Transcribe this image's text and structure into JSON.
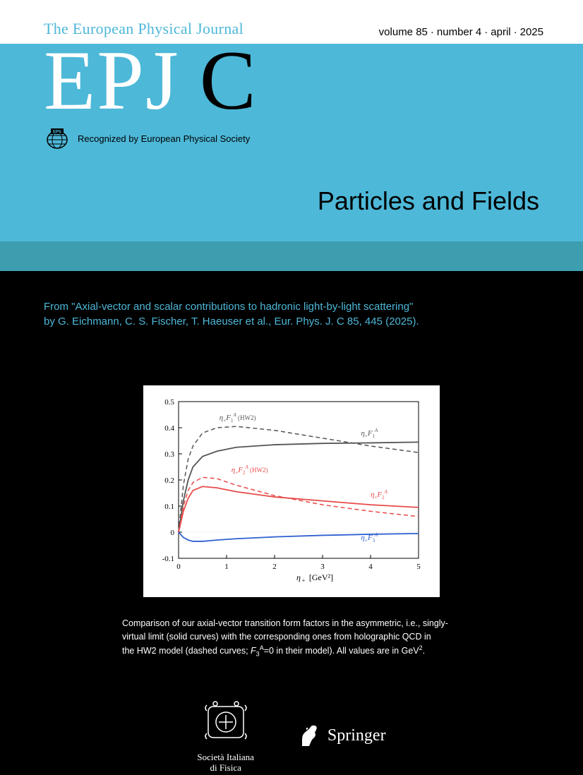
{
  "header": {
    "journal_name": "The European Physical Journal",
    "volume": "volume 85",
    "number": "number 4",
    "month": "april",
    "year": "2025"
  },
  "masthead": {
    "logo_main": "EPJ",
    "logo_letter": "C",
    "eps_text": "Recognized by European Physical Society",
    "subtitle": "Particles and Fields"
  },
  "citation": {
    "line1": "From \"Axial-vector and scalar contributions to hadronic light-by-light scattering\"",
    "line2": "by G. Eichmann, C. S. Fischer, T. Haeuser et al., Eur. Phys. J. C 85, 445 (2025)."
  },
  "chart": {
    "type": "line",
    "background_color": "#ffffff",
    "plot_border_color": "#000000",
    "xlim": [
      0,
      5
    ],
    "ylim": [
      -0.1,
      0.5
    ],
    "xticks": [
      0,
      1,
      2,
      3,
      4,
      5
    ],
    "yticks": [
      -0.1,
      0,
      0.1,
      0.2,
      0.3,
      0.4,
      0.5
    ],
    "xlabel": "η₊ [GeV²]",
    "axis_fontsize": 12,
    "tick_fontsize": 11,
    "series": [
      {
        "name": "F1_solid",
        "label": "η₊F₁ᴬ",
        "label_pos": [
          3.8,
          0.37
        ],
        "color": "#555555",
        "style": "solid",
        "width": 1.8,
        "data": [
          [
            0,
            0
          ],
          [
            0.1,
            0.12
          ],
          [
            0.2,
            0.2
          ],
          [
            0.3,
            0.25
          ],
          [
            0.5,
            0.29
          ],
          [
            0.8,
            0.31
          ],
          [
            1.2,
            0.325
          ],
          [
            2,
            0.335
          ],
          [
            3,
            0.34
          ],
          [
            4,
            0.342
          ],
          [
            5,
            0.345
          ]
        ]
      },
      {
        "name": "F1_dashed",
        "label": "η₊F₁ᴬ (HW2)",
        "label_pos": [
          0.85,
          0.43
        ],
        "color": "#555555",
        "style": "dashed",
        "width": 1.5,
        "data": [
          [
            0,
            0
          ],
          [
            0.1,
            0.18
          ],
          [
            0.2,
            0.28
          ],
          [
            0.3,
            0.33
          ],
          [
            0.5,
            0.38
          ],
          [
            0.8,
            0.4
          ],
          [
            1.2,
            0.405
          ],
          [
            2,
            0.39
          ],
          [
            3,
            0.36
          ],
          [
            4,
            0.33
          ],
          [
            5,
            0.305
          ]
        ]
      },
      {
        "name": "F2_solid",
        "label": "η₊F₂ᴬ",
        "label_pos": [
          4.0,
          0.135
        ],
        "color": "#e84a4a",
        "style": "solid",
        "width": 1.8,
        "data": [
          [
            0,
            0
          ],
          [
            0.1,
            0.08
          ],
          [
            0.2,
            0.13
          ],
          [
            0.3,
            0.16
          ],
          [
            0.5,
            0.175
          ],
          [
            0.8,
            0.17
          ],
          [
            1.2,
            0.155
          ],
          [
            2,
            0.135
          ],
          [
            3,
            0.12
          ],
          [
            4,
            0.105
          ],
          [
            5,
            0.095
          ]
        ]
      },
      {
        "name": "F2_dashed",
        "label": "η₊F₂ᴬ (HW2)",
        "label_pos": [
          1.1,
          0.23
        ],
        "color": "#e84a4a",
        "style": "dashed",
        "width": 1.5,
        "data": [
          [
            0,
            0
          ],
          [
            0.1,
            0.1
          ],
          [
            0.2,
            0.16
          ],
          [
            0.3,
            0.19
          ],
          [
            0.5,
            0.21
          ],
          [
            0.8,
            0.205
          ],
          [
            1.2,
            0.18
          ],
          [
            2,
            0.14
          ],
          [
            3,
            0.105
          ],
          [
            4,
            0.08
          ],
          [
            5,
            0.06
          ]
        ]
      },
      {
        "name": "F3_solid",
        "label": "η₊F₃ᴬ",
        "label_pos": [
          3.8,
          -0.03
        ],
        "color": "#3060d0",
        "style": "solid",
        "width": 1.8,
        "data": [
          [
            0,
            0
          ],
          [
            0.1,
            -0.02
          ],
          [
            0.2,
            -0.03
          ],
          [
            0.3,
            -0.035
          ],
          [
            0.5,
            -0.035
          ],
          [
            0.8,
            -0.03
          ],
          [
            1.2,
            -0.025
          ],
          [
            2,
            -0.018
          ],
          [
            3,
            -0.012
          ],
          [
            4,
            -0.008
          ],
          [
            5,
            -0.005
          ]
        ]
      }
    ],
    "zero_line_color": "#cccccc"
  },
  "caption": {
    "line1": "Comparison of our axial-vector transition form factors in the asymmetric, i.e., singly-",
    "line2": "virtual limit (solid curves) with the corresponding ones from holographic QCD in",
    "line3_pre": "the HW2 model (dashed curves; ",
    "line3_f": "F",
    "line3_sub": "3",
    "line3_sup": "A",
    "line3_mid": "=0 in their model). All values are in GeV",
    "line3_sup2": "2",
    "line3_end": "."
  },
  "footer": {
    "sif_name": "Società Italiana\ndi Fisica",
    "springer_name": "Springer"
  },
  "colors": {
    "cyan": "#4db8d8",
    "teal": "#3d9eb0",
    "black": "#000000",
    "white": "#ffffff"
  }
}
